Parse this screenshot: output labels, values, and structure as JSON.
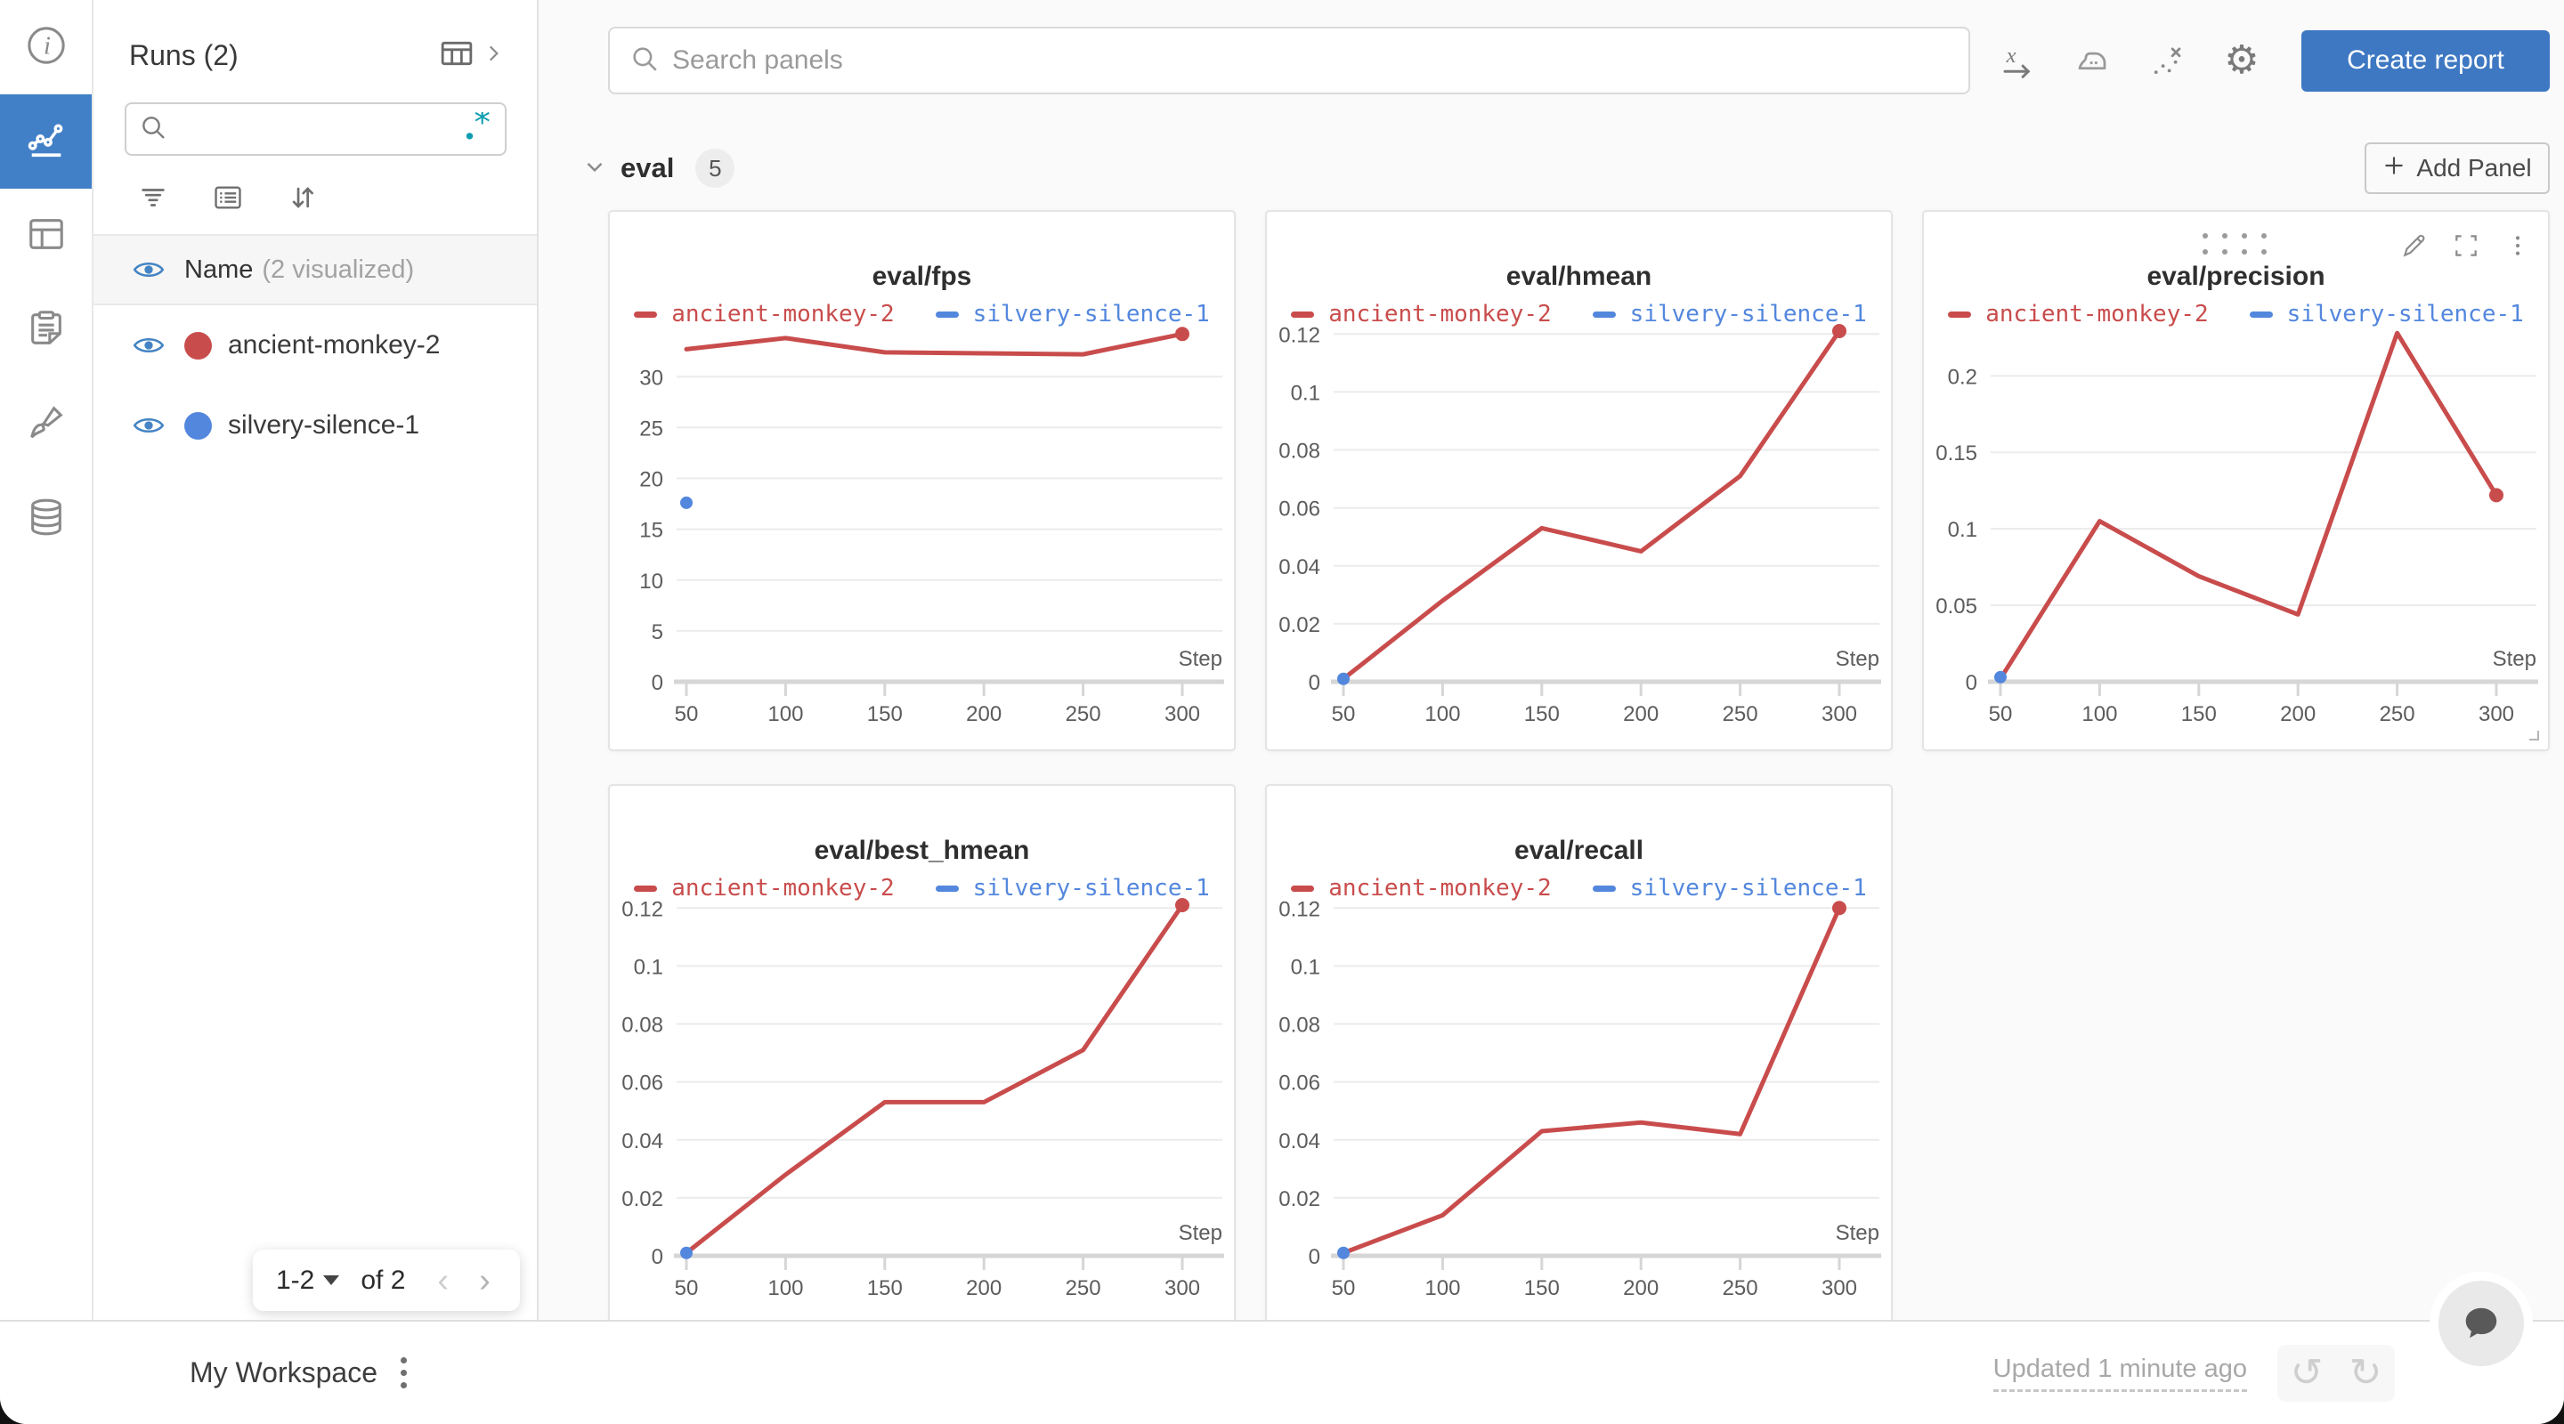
{
  "colors": {
    "accent_blue": "#3e78c2",
    "run_red": "#c94c4c",
    "run_blue": "#5387dd",
    "teal": "#0e9db0"
  },
  "rail": {
    "items": [
      {
        "icon": "info-icon",
        "active": false
      },
      {
        "icon": "line-chart-icon",
        "active": true
      },
      {
        "icon": "table-icon",
        "active": false
      },
      {
        "icon": "clipboard-icon",
        "active": false
      },
      {
        "icon": "brush-icon",
        "active": false
      },
      {
        "icon": "database-icon",
        "active": false
      }
    ]
  },
  "sidebar": {
    "title": "Runs (2)",
    "search": {
      "value": "",
      "placeholder": ""
    },
    "regex_hint": "*",
    "visualized_header": {
      "label": "Name",
      "sublabel": "(2 visualized)"
    },
    "runs": [
      {
        "name": "ancient-monkey-2",
        "color": "#c94c4c"
      },
      {
        "name": "silvery-silence-1",
        "color": "#5387dd"
      }
    ],
    "pagination": {
      "range_label": "1-2",
      "of_label": "of 2"
    }
  },
  "topbar": {
    "search_placeholder": "Search panels",
    "create_report_label": "Create report"
  },
  "section": {
    "title": "eval",
    "panel_count": "5",
    "add_panel_label": "Add Panel"
  },
  "footer": {
    "workspace_label": "My Workspace",
    "updated_label": "Updated 1 minute ago"
  },
  "chart_data": [
    {
      "type": "line",
      "title": "eval/fps",
      "xlabel": "Step",
      "x": [
        50,
        100,
        150,
        200,
        250,
        300
      ],
      "yticks": [
        0,
        5,
        10,
        15,
        20,
        25,
        30
      ],
      "ytick_labels": [
        "0",
        "5",
        "10",
        "15",
        "20",
        "25",
        "30"
      ],
      "ylim": [
        0,
        34.4
      ],
      "legend_position": "top",
      "grid": true,
      "series": [
        {
          "name": "ancient-monkey-2",
          "color": "#c94c4c",
          "style": "line",
          "values": [
            32.7,
            33.8,
            32.4,
            32.3,
            32.2,
            34.2
          ]
        },
        {
          "name": "silvery-silence-1",
          "color": "#5387dd",
          "style": "points",
          "values": [
            17.6,
            null,
            null,
            null,
            null,
            null
          ]
        }
      ]
    },
    {
      "type": "line",
      "title": "eval/hmean",
      "xlabel": "Step",
      "x": [
        50,
        100,
        150,
        200,
        250,
        300
      ],
      "yticks": [
        0,
        0.02,
        0.04,
        0.06,
        0.08,
        0.1,
        0.12
      ],
      "ytick_labels": [
        "0",
        "0.02",
        "0.04",
        "0.06",
        "0.08",
        "0.1",
        "0.12"
      ],
      "ylim": [
        0,
        0.1207
      ],
      "legend_position": "top",
      "grid": true,
      "series": [
        {
          "name": "ancient-monkey-2",
          "color": "#c94c4c",
          "style": "line",
          "values": [
            0.001,
            0.028,
            0.053,
            0.045,
            0.071,
            0.121
          ]
        },
        {
          "name": "silvery-silence-1",
          "color": "#5387dd",
          "style": "points",
          "values": [
            0.001,
            null,
            null,
            null,
            null,
            null
          ]
        }
      ]
    },
    {
      "type": "line",
      "title": "eval/precision",
      "xlabel": "Step",
      "x": [
        50,
        100,
        150,
        200,
        250,
        300
      ],
      "yticks": [
        0,
        0.05,
        0.1,
        0.15,
        0.2
      ],
      "ytick_labels": [
        "0",
        "0.05",
        "0.1",
        "0.15",
        "0.2"
      ],
      "ylim": [
        0,
        0.2287
      ],
      "legend_position": "top",
      "grid": true,
      "series": [
        {
          "name": "ancient-monkey-2",
          "color": "#c94c4c",
          "style": "line",
          "values": [
            0.002,
            0.105,
            0.069,
            0.044,
            0.228,
            0.122
          ]
        },
        {
          "name": "silvery-silence-1",
          "color": "#5387dd",
          "style": "points",
          "values": [
            0.003,
            null,
            null,
            null,
            null,
            null
          ]
        }
      ]
    },
    {
      "type": "line",
      "title": "eval/best_hmean",
      "xlabel": "Step",
      "x": [
        50,
        100,
        150,
        200,
        250,
        300
      ],
      "yticks": [
        0,
        0.02,
        0.04,
        0.06,
        0.08,
        0.1,
        0.12
      ],
      "ytick_labels": [
        "0",
        "0.02",
        "0.04",
        "0.06",
        "0.08",
        "0.1",
        "0.12"
      ],
      "ylim": [
        0,
        0.1207
      ],
      "legend_position": "top",
      "grid": true,
      "series": [
        {
          "name": "ancient-monkey-2",
          "color": "#c94c4c",
          "style": "line",
          "values": [
            0.001,
            0.028,
            0.053,
            0.053,
            0.071,
            0.121
          ]
        },
        {
          "name": "silvery-silence-1",
          "color": "#5387dd",
          "style": "points",
          "values": [
            0.001,
            null,
            null,
            null,
            null,
            null
          ]
        }
      ]
    },
    {
      "type": "line",
      "title": "eval/recall",
      "xlabel": "Step",
      "x": [
        50,
        100,
        150,
        200,
        250,
        300
      ],
      "yticks": [
        0,
        0.02,
        0.04,
        0.06,
        0.08,
        0.1,
        0.12
      ],
      "ytick_labels": [
        "0",
        "0.02",
        "0.04",
        "0.06",
        "0.08",
        "0.1",
        "0.12"
      ],
      "ylim": [
        0,
        0.1207
      ],
      "legend_position": "top",
      "grid": true,
      "series": [
        {
          "name": "ancient-monkey-2",
          "color": "#c94c4c",
          "style": "line",
          "values": [
            0.001,
            0.014,
            0.043,
            0.046,
            0.042,
            0.12
          ]
        },
        {
          "name": "silvery-silence-1",
          "color": "#5387dd",
          "style": "points",
          "values": [
            0.001,
            null,
            null,
            null,
            null,
            null
          ]
        }
      ]
    }
  ]
}
